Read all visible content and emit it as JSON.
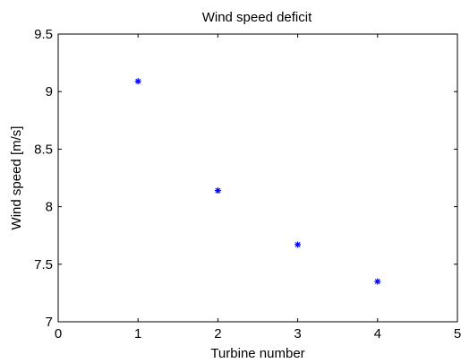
{
  "chart_data": {
    "type": "scatter",
    "title": "Wind speed deficit",
    "xlabel": "Turbine number",
    "ylabel": "Wind speed [m/s]",
    "xlim": [
      0,
      5
    ],
    "ylim": [
      7,
      9.5
    ],
    "xticks": [
      0,
      1,
      2,
      3,
      4,
      5
    ],
    "yticks": [
      7,
      7.5,
      8,
      8.5,
      9,
      9.5
    ],
    "xtick_labels": [
      "0",
      "1",
      "2",
      "3",
      "4",
      "5"
    ],
    "ytick_labels": [
      "7",
      "7.5",
      "8",
      "8.5",
      "9",
      "9.5"
    ],
    "grid": false,
    "marker": "*",
    "marker_color": "#0000ff",
    "series": [
      {
        "x": [
          1,
          2,
          3,
          4
        ],
        "y": [
          9.09,
          8.14,
          7.67,
          7.35
        ]
      }
    ]
  }
}
